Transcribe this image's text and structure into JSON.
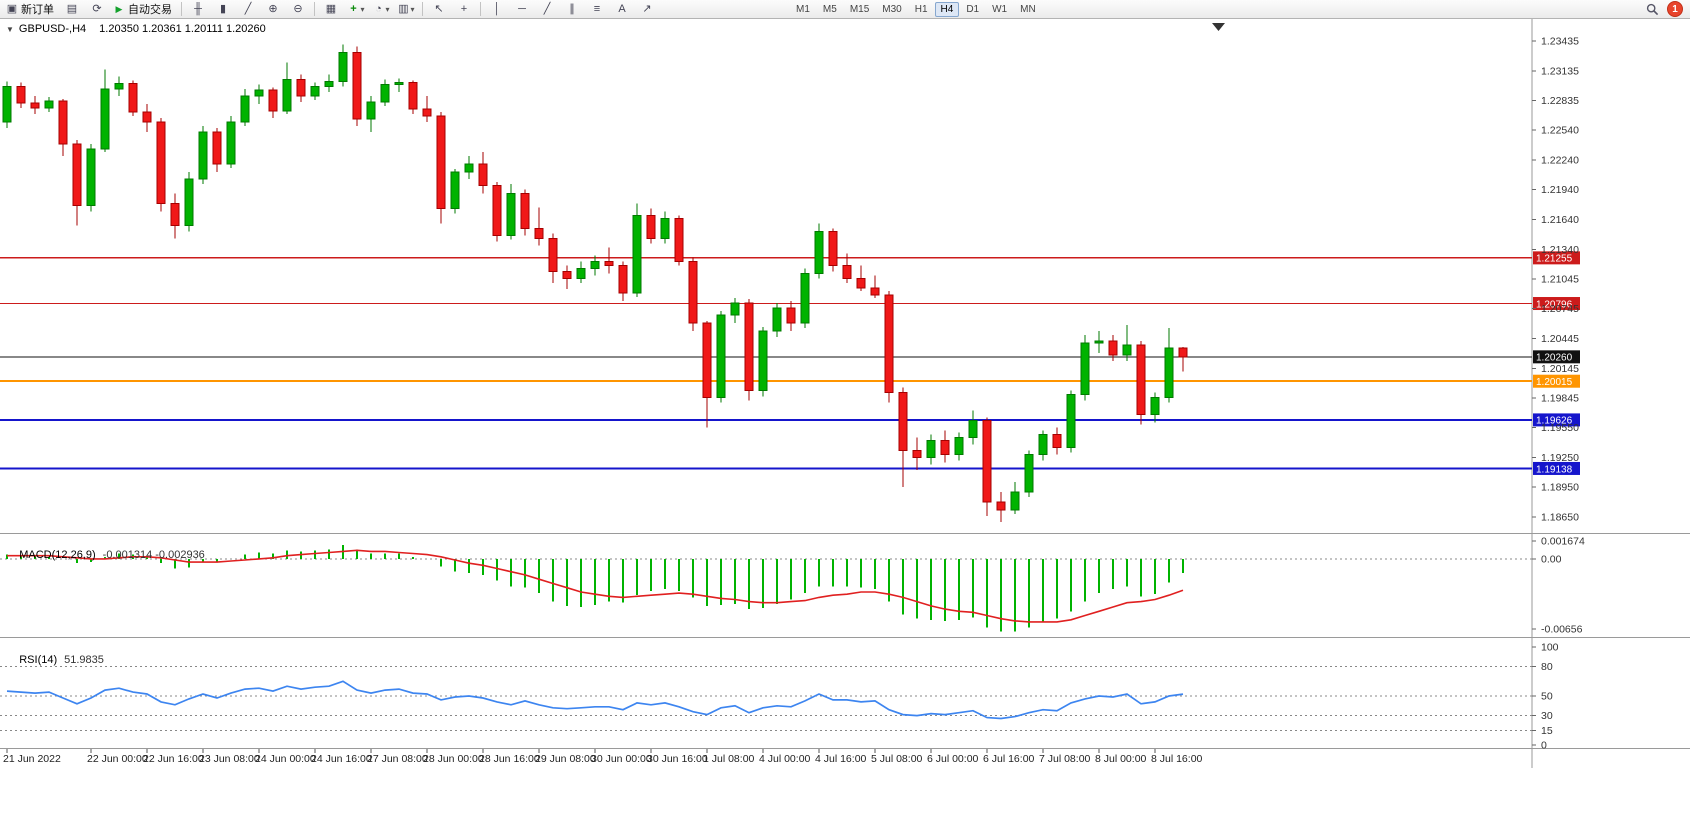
{
  "toolbar": {
    "new_order_label": "新订单",
    "autotrading_label": "自动交易",
    "timeframes": [
      "M1",
      "M5",
      "M15",
      "M30",
      "H1",
      "H4",
      "D1",
      "W1",
      "MN"
    ],
    "active_timeframe": "H4",
    "notification_count": "1"
  },
  "icon_glyphs": {
    "new_order": "▣",
    "charts_profile": "▤",
    "refresh": "⟳",
    "autotrading": "▶",
    "bar_chart": "╫",
    "candle_chart": "▮",
    "line_chart": "╱",
    "zoom_in": "⊕",
    "zoom_out": "⊖",
    "tile_windows": "▦",
    "indicators": "+",
    "periods": "◔",
    "templates": "▥",
    "dropdown": "▾",
    "cursor": "↖",
    "crosshair": "+",
    "vertical_line": "│",
    "horizontal_line": "─",
    "trendline": "╱",
    "channel": "∥",
    "fibonacci": "≡",
    "text_tool": "A",
    "arrow_tool": "↗"
  },
  "chart_data": [
    {
      "type": "candlestick",
      "symbol": "GBPUSD-,H4",
      "quote_text": "1.20350 1.20361 1.20111 1.20260",
      "quote": {
        "open": 1.2035,
        "high": 1.20361,
        "low": 1.20111,
        "close": 1.2026
      },
      "last_price": 1.2026,
      "y_range": [
        1.1865,
        1.23435
      ],
      "up_color": "#00b300",
      "up_border": "#007a00",
      "down_color": "#f01818",
      "down_border": "#a50000",
      "y_ticks": [
        "1.23435",
        "1.23135",
        "1.22835",
        "1.22540",
        "1.22240",
        "1.21940",
        "1.21640",
        "1.21340",
        "1.21045",
        "1.20745",
        "1.20445",
        "1.20145",
        "1.19845",
        "1.19550",
        "1.19250",
        "1.18950",
        "1.18650"
      ],
      "x_ticks": [
        {
          "label": "21 Jun 2022",
          "i": 0
        },
        {
          "label": "22 Jun 00:00",
          "i": 6
        },
        {
          "label": "22 Jun 16:00",
          "i": 10
        },
        {
          "label": "23 Jun 08:00",
          "i": 14
        },
        {
          "label": "24 Jun 00:00",
          "i": 18
        },
        {
          "label": "24 Jun 16:00",
          "i": 22
        },
        {
          "label": "27 Jun 08:00",
          "i": 26
        },
        {
          "label": "28 Jun 00:00",
          "i": 30
        },
        {
          "label": "28 Jun 16:00",
          "i": 34
        },
        {
          "label": "29 Jun 08:00",
          "i": 38
        },
        {
          "label": "30 Jun 00:00",
          "i": 42
        },
        {
          "label": "30 Jun 16:00",
          "i": 46
        },
        {
          "label": "1 Jul 08:00",
          "i": 50
        },
        {
          "label": "4 Jul 00:00",
          "i": 54
        },
        {
          "label": "4 Jul 16:00",
          "i": 58
        },
        {
          "label": "5 Jul 08:00",
          "i": 62
        },
        {
          "label": "6 Jul 00:00",
          "i": 66
        },
        {
          "label": "6 Jul 16:00",
          "i": 70
        },
        {
          "label": "7 Jul 08:00",
          "i": 74
        },
        {
          "label": "8 Jul 00:00",
          "i": 78
        },
        {
          "label": "8 Jul 16:00",
          "i": 82
        }
      ],
      "hlines": [
        {
          "price": 1.21255,
          "color": "#cc1b1b",
          "width": 1.4,
          "label": "1.21255"
        },
        {
          "price": 1.20796,
          "color": "#cc1b1b",
          "width": 1.4,
          "label": "1.20796"
        },
        {
          "price": 1.2026,
          "color": "#111111",
          "width": 1,
          "label": "1.20260"
        },
        {
          "price": 1.20015,
          "color": "#ff9500",
          "width": 2,
          "label": "1.20015"
        },
        {
          "price": 1.19626,
          "color": "#1515cc",
          "width": 2,
          "label": "1.19626"
        },
        {
          "price": 1.19138,
          "color": "#1515cc",
          "width": 2,
          "label": "1.19138"
        }
      ],
      "candles": [
        [
          1.2262,
          1.2303,
          1.2256,
          1.2298
        ],
        [
          1.2298,
          1.2302,
          1.2276,
          1.2281
        ],
        [
          1.2281,
          1.2288,
          1.227,
          1.2276
        ],
        [
          1.2276,
          1.2287,
          1.2272,
          1.2283
        ],
        [
          1.2283,
          1.2285,
          1.2228,
          1.224
        ],
        [
          1.224,
          1.2244,
          1.2158,
          1.2178
        ],
        [
          1.2178,
          1.224,
          1.2172,
          1.2235
        ],
        [
          1.2235,
          1.2315,
          1.2232,
          1.2295
        ],
        [
          1.2295,
          1.2308,
          1.2288,
          1.2301
        ],
        [
          1.2301,
          1.2304,
          1.2268,
          1.2272
        ],
        [
          1.2272,
          1.228,
          1.2252,
          1.2262
        ],
        [
          1.2262,
          1.2266,
          1.2172,
          1.218
        ],
        [
          1.218,
          1.219,
          1.2145,
          1.2158
        ],
        [
          1.2158,
          1.2212,
          1.2152,
          1.2205
        ],
        [
          1.2205,
          1.2258,
          1.22,
          1.2252
        ],
        [
          1.2252,
          1.2256,
          1.2212,
          1.222
        ],
        [
          1.222,
          1.2268,
          1.2216,
          1.2262
        ],
        [
          1.2262,
          1.2295,
          1.2258,
          1.2288
        ],
        [
          1.2288,
          1.23,
          1.228,
          1.2294
        ],
        [
          1.2294,
          1.2297,
          1.2266,
          1.2273
        ],
        [
          1.2273,
          1.2322,
          1.227,
          1.2305
        ],
        [
          1.2305,
          1.231,
          1.2282,
          1.2288
        ],
        [
          1.2288,
          1.2302,
          1.2284,
          1.2298
        ],
        [
          1.2298,
          1.231,
          1.2292,
          1.2303
        ],
        [
          1.2303,
          1.234,
          1.2298,
          1.2332
        ],
        [
          1.2332,
          1.2338,
          1.2258,
          1.2265
        ],
        [
          1.2265,
          1.2288,
          1.2252,
          1.2282
        ],
        [
          1.2282,
          1.2305,
          1.2278,
          1.23
        ],
        [
          1.23,
          1.2306,
          1.2292,
          1.2302
        ],
        [
          1.2302,
          1.2304,
          1.227,
          1.2275
        ],
        [
          1.2275,
          1.2288,
          1.2262,
          1.2268
        ],
        [
          1.2268,
          1.2272,
          1.216,
          1.2175
        ],
        [
          1.2175,
          1.2215,
          1.217,
          1.2212
        ],
        [
          1.2212,
          1.2228,
          1.2205,
          1.222
        ],
        [
          1.222,
          1.2232,
          1.219,
          1.2198
        ],
        [
          1.2198,
          1.2202,
          1.2142,
          1.2148
        ],
        [
          1.2148,
          1.22,
          1.2144,
          1.219
        ],
        [
          1.219,
          1.2194,
          1.2148,
          1.2155
        ],
        [
          1.2155,
          1.2176,
          1.2138,
          1.2145
        ],
        [
          1.2145,
          1.215,
          1.21,
          1.2112
        ],
        [
          1.2112,
          1.2118,
          1.2094,
          1.2105
        ],
        [
          1.2105,
          1.2122,
          1.21,
          1.2115
        ],
        [
          1.2115,
          1.2128,
          1.2108,
          1.2122
        ],
        [
          1.2122,
          1.2136,
          1.211,
          1.2118
        ],
        [
          1.2118,
          1.2122,
          1.2082,
          1.209
        ],
        [
          1.209,
          1.218,
          1.2086,
          1.2168
        ],
        [
          1.2168,
          1.2175,
          1.214,
          1.2145
        ],
        [
          1.2145,
          1.2172,
          1.214,
          1.2165
        ],
        [
          1.2165,
          1.2168,
          1.2118,
          1.2122
        ],
        [
          1.2122,
          1.2126,
          1.2052,
          1.206
        ],
        [
          1.206,
          1.2062,
          1.1955,
          1.1985
        ],
        [
          1.1985,
          1.2072,
          1.198,
          1.2068
        ],
        [
          1.2068,
          1.2085,
          1.206,
          1.208
        ],
        [
          1.208,
          1.2084,
          1.1982,
          1.1992
        ],
        [
          1.1992,
          1.2056,
          1.1986,
          1.2052
        ],
        [
          1.2052,
          1.208,
          1.2046,
          1.2075
        ],
        [
          1.2075,
          1.2082,
          1.2052,
          1.206
        ],
        [
          1.206,
          1.2115,
          1.2055,
          1.211
        ],
        [
          1.211,
          1.216,
          1.2105,
          1.2152
        ],
        [
          1.2152,
          1.2155,
          1.2112,
          1.2118
        ],
        [
          1.2118,
          1.213,
          1.21,
          1.2105
        ],
        [
          1.2105,
          1.2118,
          1.2092,
          1.2095
        ],
        [
          1.2095,
          1.2108,
          1.2085,
          1.2088
        ],
        [
          1.2088,
          1.2092,
          1.198,
          1.199
        ],
        [
          1.199,
          1.1995,
          1.1895,
          1.1932
        ],
        [
          1.1932,
          1.1945,
          1.1912,
          1.1925
        ],
        [
          1.1925,
          1.1948,
          1.1918,
          1.1942
        ],
        [
          1.1942,
          1.1952,
          1.192,
          1.1928
        ],
        [
          1.1928,
          1.195,
          1.1922,
          1.1945
        ],
        [
          1.1945,
          1.1972,
          1.1938,
          1.1962
        ],
        [
          1.1962,
          1.1965,
          1.1866,
          1.188
        ],
        [
          1.188,
          1.189,
          1.186,
          1.1872
        ],
        [
          1.1872,
          1.19,
          1.1868,
          1.189
        ],
        [
          1.189,
          1.1932,
          1.1885,
          1.1928
        ],
        [
          1.1928,
          1.1952,
          1.1922,
          1.1948
        ],
        [
          1.1948,
          1.1955,
          1.1928,
          1.1935
        ],
        [
          1.1935,
          1.1992,
          1.193,
          1.1988
        ],
        [
          1.1988,
          1.2048,
          1.1982,
          1.204
        ],
        [
          1.204,
          1.2052,
          1.203,
          1.2042
        ],
        [
          1.2042,
          1.2048,
          1.2022,
          1.2028
        ],
        [
          1.2028,
          1.2058,
          1.2022,
          1.2038
        ],
        [
          1.2038,
          1.2042,
          1.1958,
          1.1968
        ],
        [
          1.1968,
          1.199,
          1.196,
          1.1985
        ],
        [
          1.1985,
          1.2055,
          1.198,
          1.2035
        ],
        [
          1.2035,
          1.20361,
          1.20111,
          1.2026
        ]
      ]
    },
    {
      "type": "bar",
      "name": "MACD(12,26,9)",
      "values_label": "-0.001314 -0.002936",
      "y_ticks": [
        "0.001674",
        "0.00",
        "-0.00656"
      ],
      "y_max": 0.001674,
      "y_min": -0.00656,
      "bar_color": "#00b300",
      "signal_color": "#e02020",
      "histogram": [
        0.0004,
        0.0003,
        0.0003,
        0.0002,
        0.0,
        -0.0004,
        -0.0003,
        0.0002,
        0.0005,
        0.0004,
        0.0002,
        -0.0004,
        -0.0009,
        -0.0008,
        -0.0003,
        -0.0003,
        0.0,
        0.0004,
        0.0006,
        0.0005,
        0.0008,
        0.0007,
        0.0008,
        0.0009,
        0.0013,
        0.0009,
        0.0005,
        0.0005,
        0.0005,
        0.0002,
        0.0,
        -0.0007,
        -0.0012,
        -0.0013,
        -0.0015,
        -0.002,
        -0.0026,
        -0.0027,
        -0.0032,
        -0.004,
        -0.0044,
        -0.0045,
        -0.0043,
        -0.004,
        -0.0041,
        -0.0034,
        -0.003,
        -0.0028,
        -0.003,
        -0.0036,
        -0.0044,
        -0.0043,
        -0.0042,
        -0.0047,
        -0.0046,
        -0.0042,
        -0.0038,
        -0.0032,
        -0.0026,
        -0.0026,
        -0.0026,
        -0.0027,
        -0.0028,
        -0.004,
        -0.0052,
        -0.0056,
        -0.0057,
        -0.0058,
        -0.0057,
        -0.0055,
        -0.0064,
        -0.0068,
        -0.0068,
        -0.0064,
        -0.0059,
        -0.0056,
        -0.0049,
        -0.004,
        -0.0032,
        -0.0028,
        -0.0026,
        -0.0035,
        -0.0033,
        -0.0022,
        -0.001314
      ],
      "signal": [
        0.0003,
        0.0003,
        0.0003,
        0.0003,
        0.0002,
        0.0001,
        0.0,
        0.0,
        0.0001,
        0.0002,
        0.0002,
        0.0001,
        -0.0001,
        -0.0003,
        -0.0003,
        -0.0003,
        -0.0002,
        -0.0001,
        0.0,
        0.0001,
        0.0003,
        0.0004,
        0.0005,
        0.0006,
        0.0007,
        0.0008,
        0.0007,
        0.0007,
        0.0006,
        0.0005,
        0.0004,
        0.0002,
        -0.0001,
        -0.0004,
        -0.0006,
        -0.0009,
        -0.0012,
        -0.0015,
        -0.0019,
        -0.0023,
        -0.0027,
        -0.0031,
        -0.0033,
        -0.0035,
        -0.0036,
        -0.0035,
        -0.0034,
        -0.0033,
        -0.0032,
        -0.0033,
        -0.0035,
        -0.0037,
        -0.0038,
        -0.004,
        -0.0041,
        -0.0041,
        -0.004,
        -0.0039,
        -0.0036,
        -0.0034,
        -0.0033,
        -0.0031,
        -0.0031,
        -0.0033,
        -0.0036,
        -0.004,
        -0.0044,
        -0.0047,
        -0.0049,
        -0.005,
        -0.0053,
        -0.0056,
        -0.0058,
        -0.0059,
        -0.0059,
        -0.0059,
        -0.0057,
        -0.0053,
        -0.0049,
        -0.0045,
        -0.0041,
        -0.004,
        -0.0038,
        -0.0034,
        -0.002936
      ]
    },
    {
      "type": "line",
      "name": "RSI(14)",
      "value_label": "51.9835",
      "range": [
        0,
        100
      ],
      "y_ticks": [
        100,
        80,
        50,
        30,
        15,
        0
      ],
      "levels": [
        80,
        50,
        30,
        15
      ],
      "line_color": "#3d85f0",
      "values": [
        55,
        54,
        53,
        54,
        48,
        42,
        48,
        56,
        58,
        54,
        52,
        44,
        41,
        47,
        52,
        48,
        53,
        57,
        58,
        55,
        60,
        57,
        59,
        60,
        65,
        56,
        53,
        56,
        57,
        53,
        52,
        46,
        49,
        50,
        48,
        44,
        41,
        45,
        41,
        38,
        37,
        38,
        39,
        39,
        36,
        43,
        41,
        43,
        39,
        34,
        31,
        38,
        40,
        33,
        38,
        40,
        39,
        45,
        52,
        46,
        46,
        44,
        45,
        36,
        31,
        30,
        32,
        31,
        33,
        35,
        28,
        27,
        29,
        33,
        36,
        35,
        43,
        47,
        50,
        49,
        52,
        42,
        44,
        50,
        51.98
      ]
    }
  ]
}
